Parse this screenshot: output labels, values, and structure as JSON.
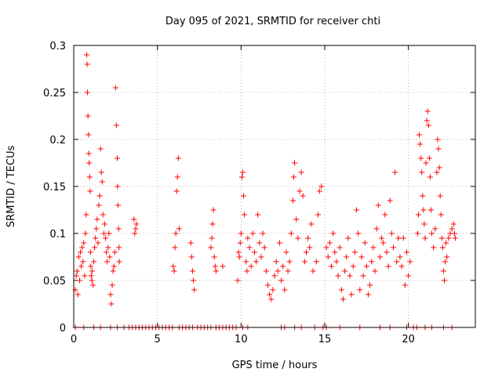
{
  "chart_data": {
    "type": "scatter",
    "title": "Day 095 of 2021, SRMTID for receiver chti",
    "xlabel": "GPS time / hours",
    "ylabel": "SRMTID / TECUs",
    "xlim": [
      0,
      24
    ],
    "ylim": [
      0,
      0.3
    ],
    "grid": true,
    "marker": "plus",
    "color": "#ff0000",
    "x_ticks": [
      {
        "value": 0,
        "label": "0"
      },
      {
        "value": 5,
        "label": "5"
      },
      {
        "value": 10,
        "label": "10"
      },
      {
        "value": 15,
        "label": "15"
      },
      {
        "value": 20,
        "label": "20"
      }
    ],
    "y_ticks": [
      {
        "value": 0,
        "label": "0"
      },
      {
        "value": 0.05,
        "label": "0.05"
      },
      {
        "value": 0.1,
        "label": "0.1"
      },
      {
        "value": 0.15,
        "label": "0.15"
      },
      {
        "value": 0.2,
        "label": "0.2"
      },
      {
        "value": 0.25,
        "label": "0.25"
      },
      {
        "value": 0.3,
        "label": "0.3"
      }
    ],
    "series": [
      {
        "name": "SRMTID",
        "points": [
          [
            0.1,
            0.04
          ],
          [
            0.15,
            0.055
          ],
          [
            0.2,
            0.06
          ],
          [
            0.25,
            0.035
          ],
          [
            0.3,
            0.075
          ],
          [
            0.35,
            0.05
          ],
          [
            0.4,
            0.08
          ],
          [
            0.45,
            0.065
          ],
          [
            0.5,
            0.085
          ],
          [
            0.55,
            0.07
          ],
          [
            0.6,
            0.09
          ],
          [
            0.65,
            0.055
          ],
          [
            0.7,
            0.1
          ],
          [
            0.75,
            0.12
          ],
          [
            0.78,
            0.29
          ],
          [
            0.8,
            0.28
          ],
          [
            0.82,
            0.25
          ],
          [
            0.85,
            0.225
          ],
          [
            0.88,
            0.205
          ],
          [
            0.9,
            0.185
          ],
          [
            0.92,
            0.175
          ],
          [
            0.95,
            0.16
          ],
          [
            0.98,
            0.145
          ],
          [
            1.0,
            0.08
          ],
          [
            1.02,
            0.065
          ],
          [
            1.05,
            0.055
          ],
          [
            1.08,
            0.05
          ],
          [
            1.1,
            0.06
          ],
          [
            1.15,
            0.045
          ],
          [
            1.2,
            0.07
          ],
          [
            1.25,
            0.085
          ],
          [
            1.3,
            0.095
          ],
          [
            1.35,
            0.105
          ],
          [
            1.4,
            0.115
          ],
          [
            1.45,
            0.09
          ],
          [
            1.5,
            0.13
          ],
          [
            1.55,
            0.14
          ],
          [
            1.6,
            0.19
          ],
          [
            1.65,
            0.165
          ],
          [
            1.7,
            0.155
          ],
          [
            1.75,
            0.12
          ],
          [
            1.8,
            0.1
          ],
          [
            1.85,
            0.11
          ],
          [
            1.9,
            0.095
          ],
          [
            1.95,
            0.08
          ],
          [
            2.0,
            0.07
          ],
          [
            2.05,
            0.085
          ],
          [
            2.1,
            0.1
          ],
          [
            2.15,
            0.075
          ],
          [
            2.2,
            0.035
          ],
          [
            2.25,
            0.025
          ],
          [
            2.3,
            0.045
          ],
          [
            2.35,
            0.06
          ],
          [
            2.4,
            0.065
          ],
          [
            2.45,
            0.08
          ],
          [
            2.5,
            0.255
          ],
          [
            2.55,
            0.215
          ],
          [
            2.6,
            0.18
          ],
          [
            2.62,
            0.15
          ],
          [
            2.65,
            0.13
          ],
          [
            2.68,
            0.105
          ],
          [
            2.7,
            0.085
          ],
          [
            2.72,
            0.07
          ],
          [
            3.6,
            0.115
          ],
          [
            3.65,
            0.1
          ],
          [
            3.7,
            0.105
          ],
          [
            3.75,
            0.11
          ],
          [
            5.95,
            0.065
          ],
          [
            6.0,
            0.06
          ],
          [
            6.05,
            0.085
          ],
          [
            6.1,
            0.1
          ],
          [
            6.15,
            0.145
          ],
          [
            6.2,
            0.16
          ],
          [
            6.25,
            0.18
          ],
          [
            6.3,
            0.105
          ],
          [
            7.0,
            0.09
          ],
          [
            7.05,
            0.075
          ],
          [
            7.1,
            0.06
          ],
          [
            7.15,
            0.05
          ],
          [
            7.2,
            0.04
          ],
          [
            8.2,
            0.085
          ],
          [
            8.25,
            0.095
          ],
          [
            8.3,
            0.11
          ],
          [
            8.35,
            0.125
          ],
          [
            8.4,
            0.075
          ],
          [
            8.45,
            0.065
          ],
          [
            8.5,
            0.06
          ],
          [
            8.9,
            0.065
          ],
          [
            9.8,
            0.05
          ],
          [
            9.85,
            0.08
          ],
          [
            9.9,
            0.075
          ],
          [
            9.95,
            0.09
          ],
          [
            10.0,
            0.1
          ],
          [
            10.05,
            0.16
          ],
          [
            10.1,
            0.165
          ],
          [
            10.15,
            0.14
          ],
          [
            10.2,
            0.12
          ],
          [
            10.3,
            0.07
          ],
          [
            10.35,
            0.06
          ],
          [
            10.4,
            0.095
          ],
          [
            10.5,
            0.085
          ],
          [
            10.6,
            0.065
          ],
          [
            10.7,
            0.1
          ],
          [
            10.8,
            0.08
          ],
          [
            10.9,
            0.07
          ],
          [
            11.0,
            0.12
          ],
          [
            11.1,
            0.09
          ],
          [
            11.2,
            0.075
          ],
          [
            11.3,
            0.1
          ],
          [
            11.4,
            0.085
          ],
          [
            11.5,
            0.06
          ],
          [
            11.6,
            0.045
          ],
          [
            11.7,
            0.035
          ],
          [
            11.8,
            0.03
          ],
          [
            11.9,
            0.04
          ],
          [
            12.0,
            0.055
          ],
          [
            12.1,
            0.07
          ],
          [
            12.2,
            0.06
          ],
          [
            12.3,
            0.09
          ],
          [
            12.4,
            0.05
          ],
          [
            12.5,
            0.065
          ],
          [
            12.6,
            0.04
          ],
          [
            12.7,
            0.08
          ],
          [
            12.8,
            0.06
          ],
          [
            12.9,
            0.07
          ],
          [
            13.0,
            0.1
          ],
          [
            13.1,
            0.135
          ],
          [
            13.15,
            0.16
          ],
          [
            13.2,
            0.175
          ],
          [
            13.3,
            0.115
          ],
          [
            13.4,
            0.095
          ],
          [
            13.5,
            0.145
          ],
          [
            13.6,
            0.165
          ],
          [
            13.7,
            0.14
          ],
          [
            13.8,
            0.07
          ],
          [
            13.9,
            0.08
          ],
          [
            14.0,
            0.095
          ],
          [
            14.1,
            0.085
          ],
          [
            14.2,
            0.11
          ],
          [
            14.3,
            0.06
          ],
          [
            14.5,
            0.07
          ],
          [
            14.6,
            0.12
          ],
          [
            14.7,
            0.145
          ],
          [
            14.8,
            0.15
          ],
          [
            15.1,
            0.085
          ],
          [
            15.2,
            0.075
          ],
          [
            15.3,
            0.09
          ],
          [
            15.4,
            0.065
          ],
          [
            15.5,
            0.1
          ],
          [
            15.6,
            0.08
          ],
          [
            15.7,
            0.07
          ],
          [
            15.8,
            0.055
          ],
          [
            15.9,
            0.085
          ],
          [
            16.0,
            0.04
          ],
          [
            16.1,
            0.03
          ],
          [
            16.2,
            0.06
          ],
          [
            16.3,
            0.075
          ],
          [
            16.4,
            0.095
          ],
          [
            16.5,
            0.055
          ],
          [
            16.6,
            0.035
          ],
          [
            16.7,
            0.065
          ],
          [
            16.8,
            0.08
          ],
          [
            16.9,
            0.125
          ],
          [
            17.0,
            0.1
          ],
          [
            17.1,
            0.04
          ],
          [
            17.2,
            0.075
          ],
          [
            17.3,
            0.055
          ],
          [
            17.4,
            0.09
          ],
          [
            17.5,
            0.065
          ],
          [
            17.6,
            0.035
          ],
          [
            17.7,
            0.045
          ],
          [
            17.8,
            0.07
          ],
          [
            17.9,
            0.085
          ],
          [
            18.0,
            0.06
          ],
          [
            18.1,
            0.105
          ],
          [
            18.2,
            0.13
          ],
          [
            18.3,
            0.075
          ],
          [
            18.4,
            0.095
          ],
          [
            18.5,
            0.09
          ],
          [
            18.6,
            0.12
          ],
          [
            18.7,
            0.08
          ],
          [
            18.8,
            0.065
          ],
          [
            18.9,
            0.135
          ],
          [
            19.0,
            0.1
          ],
          [
            19.1,
            0.085
          ],
          [
            19.2,
            0.165
          ],
          [
            19.3,
            0.07
          ],
          [
            19.4,
            0.095
          ],
          [
            19.5,
            0.075
          ],
          [
            19.6,
            0.065
          ],
          [
            19.7,
            0.095
          ],
          [
            19.8,
            0.045
          ],
          [
            19.9,
            0.08
          ],
          [
            20.0,
            0.055
          ],
          [
            20.1,
            0.07
          ],
          [
            20.55,
            0.1
          ],
          [
            20.6,
            0.12
          ],
          [
            20.65,
            0.205
          ],
          [
            20.7,
            0.195
          ],
          [
            20.75,
            0.18
          ],
          [
            20.8,
            0.165
          ],
          [
            20.85,
            0.14
          ],
          [
            20.9,
            0.125
          ],
          [
            20.95,
            0.11
          ],
          [
            21.0,
            0.095
          ],
          [
            21.05,
            0.175
          ],
          [
            21.1,
            0.22
          ],
          [
            21.15,
            0.23
          ],
          [
            21.2,
            0.215
          ],
          [
            21.25,
            0.18
          ],
          [
            21.3,
            0.16
          ],
          [
            21.35,
            0.125
          ],
          [
            21.4,
            0.1
          ],
          [
            21.5,
            0.085
          ],
          [
            21.6,
            0.105
          ],
          [
            21.7,
            0.165
          ],
          [
            21.75,
            0.2
          ],
          [
            21.8,
            0.19
          ],
          [
            21.85,
            0.17
          ],
          [
            21.9,
            0.14
          ],
          [
            21.95,
            0.12
          ],
          [
            22.0,
            0.095
          ],
          [
            22.05,
            0.085
          ],
          [
            22.1,
            0.06
          ],
          [
            22.15,
            0.05
          ],
          [
            22.2,
            0.07
          ],
          [
            22.25,
            0.09
          ],
          [
            22.3,
            0.075
          ],
          [
            22.4,
            0.095
          ],
          [
            22.5,
            0.1
          ],
          [
            22.6,
            0.105
          ],
          [
            22.7,
            0.11
          ],
          [
            22.75,
            0.1
          ],
          [
            22.8,
            0.095
          ],
          [
            0.1,
            0
          ],
          [
            0.6,
            0
          ],
          [
            1.2,
            0
          ],
          [
            1.6,
            0
          ],
          [
            2.2,
            0
          ],
          [
            2.6,
            0
          ],
          [
            3.0,
            0
          ],
          [
            3.3,
            0
          ],
          [
            3.5,
            0
          ],
          [
            3.7,
            0
          ],
          [
            3.9,
            0
          ],
          [
            4.1,
            0
          ],
          [
            4.3,
            0
          ],
          [
            4.5,
            0
          ],
          [
            4.7,
            0
          ],
          [
            4.9,
            0
          ],
          [
            5.1,
            0
          ],
          [
            5.3,
            0
          ],
          [
            5.5,
            0
          ],
          [
            5.7,
            0
          ],
          [
            5.9,
            0
          ],
          [
            6.3,
            0
          ],
          [
            6.5,
            0
          ],
          [
            6.7,
            0
          ],
          [
            6.9,
            0
          ],
          [
            7.1,
            0
          ],
          [
            7.4,
            0
          ],
          [
            7.6,
            0
          ],
          [
            7.8,
            0
          ],
          [
            8.0,
            0
          ],
          [
            8.2,
            0
          ],
          [
            8.5,
            0
          ],
          [
            8.7,
            0
          ],
          [
            8.9,
            0
          ],
          [
            9.1,
            0
          ],
          [
            9.3,
            0
          ],
          [
            9.5,
            0
          ],
          [
            9.7,
            0
          ],
          [
            10.1,
            0
          ],
          [
            10.4,
            0
          ],
          [
            12.4,
            0
          ],
          [
            12.6,
            0
          ],
          [
            13.2,
            0
          ],
          [
            13.6,
            0
          ],
          [
            14.4,
            0
          ],
          [
            14.9,
            0
          ],
          [
            15.1,
            0
          ],
          [
            15.9,
            0
          ],
          [
            17.1,
            0
          ],
          [
            18.3,
            0
          ],
          [
            18.9,
            0
          ],
          [
            19.9,
            0
          ],
          [
            20.3,
            0
          ],
          [
            20.5,
            0
          ],
          [
            21.0,
            0
          ],
          [
            21.4,
            0
          ],
          [
            22.1,
            0
          ],
          [
            22.6,
            0
          ]
        ]
      }
    ]
  }
}
